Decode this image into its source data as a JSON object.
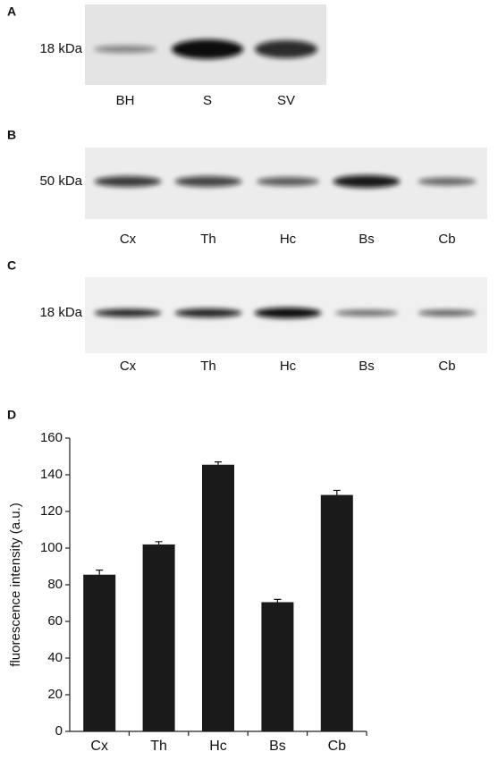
{
  "panels": [
    {
      "label": "A",
      "marker": "18 kDa",
      "lanes": [
        "BH",
        "S",
        "SV"
      ]
    },
    {
      "label": "B",
      "marker": "50 kDa",
      "lanes": [
        "Cx",
        "Th",
        "Hc",
        "Bs",
        "Cb"
      ]
    },
    {
      "label": "C",
      "marker": "18 kDa",
      "lanes": [
        "Cx",
        "Th",
        "Hc",
        "Bs",
        "Cb"
      ]
    }
  ],
  "chart_data": {
    "type": "bar",
    "panel_label": "D",
    "y_label": "fluorescence intensity (a.u.)",
    "categories": [
      "Cx",
      "Th",
      "Hc",
      "Bs",
      "Cb"
    ],
    "values": [
      85.5,
      102,
      145.5,
      70.5,
      129
    ],
    "errors": [
      2.5,
      1.5,
      1.5,
      1.5,
      2.5
    ],
    "color": "#1a1a1a",
    "ylim": [
      0,
      160
    ],
    "yticks": [
      0,
      20,
      40,
      60,
      80,
      100,
      120,
      140,
      160
    ]
  }
}
